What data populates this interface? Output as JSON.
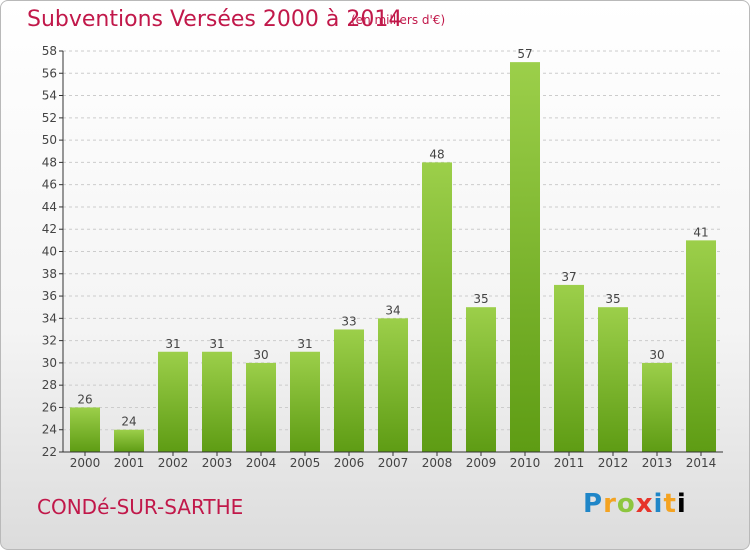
{
  "header": {
    "title": "Subventions Versées 2000 à 2014",
    "subtitle": "(en milliers d'€)"
  },
  "footer": {
    "location": "CONDé-SUR-SARTHE",
    "logo_letters": [
      "P",
      "r",
      "o",
      "x",
      "i",
      "t",
      "i"
    ]
  },
  "colors": {
    "title": "#c1184a",
    "bar_light": "#9ccf4a",
    "bar_dark": "#5e9c14",
    "grid": "#cccccc",
    "axis": "#333333"
  },
  "chart_data": {
    "type": "bar",
    "title": "Subventions Versées 2000 à 2014",
    "subtitle": "(en milliers d'€)",
    "categories": [
      "2000",
      "2001",
      "2002",
      "2003",
      "2004",
      "2005",
      "2006",
      "2007",
      "2008",
      "2009",
      "2010",
      "2011",
      "2012",
      "2013",
      "2014"
    ],
    "values": [
      26,
      24,
      31,
      31,
      30,
      31,
      33,
      34,
      48,
      35,
      57,
      37,
      35,
      30,
      41
    ],
    "ylim": [
      22,
      58
    ],
    "yticks": [
      22,
      24,
      26,
      28,
      30,
      32,
      34,
      36,
      38,
      40,
      42,
      44,
      46,
      48,
      50,
      52,
      54,
      56,
      58
    ],
    "grid": true,
    "xlabel": "",
    "ylabel": ""
  }
}
